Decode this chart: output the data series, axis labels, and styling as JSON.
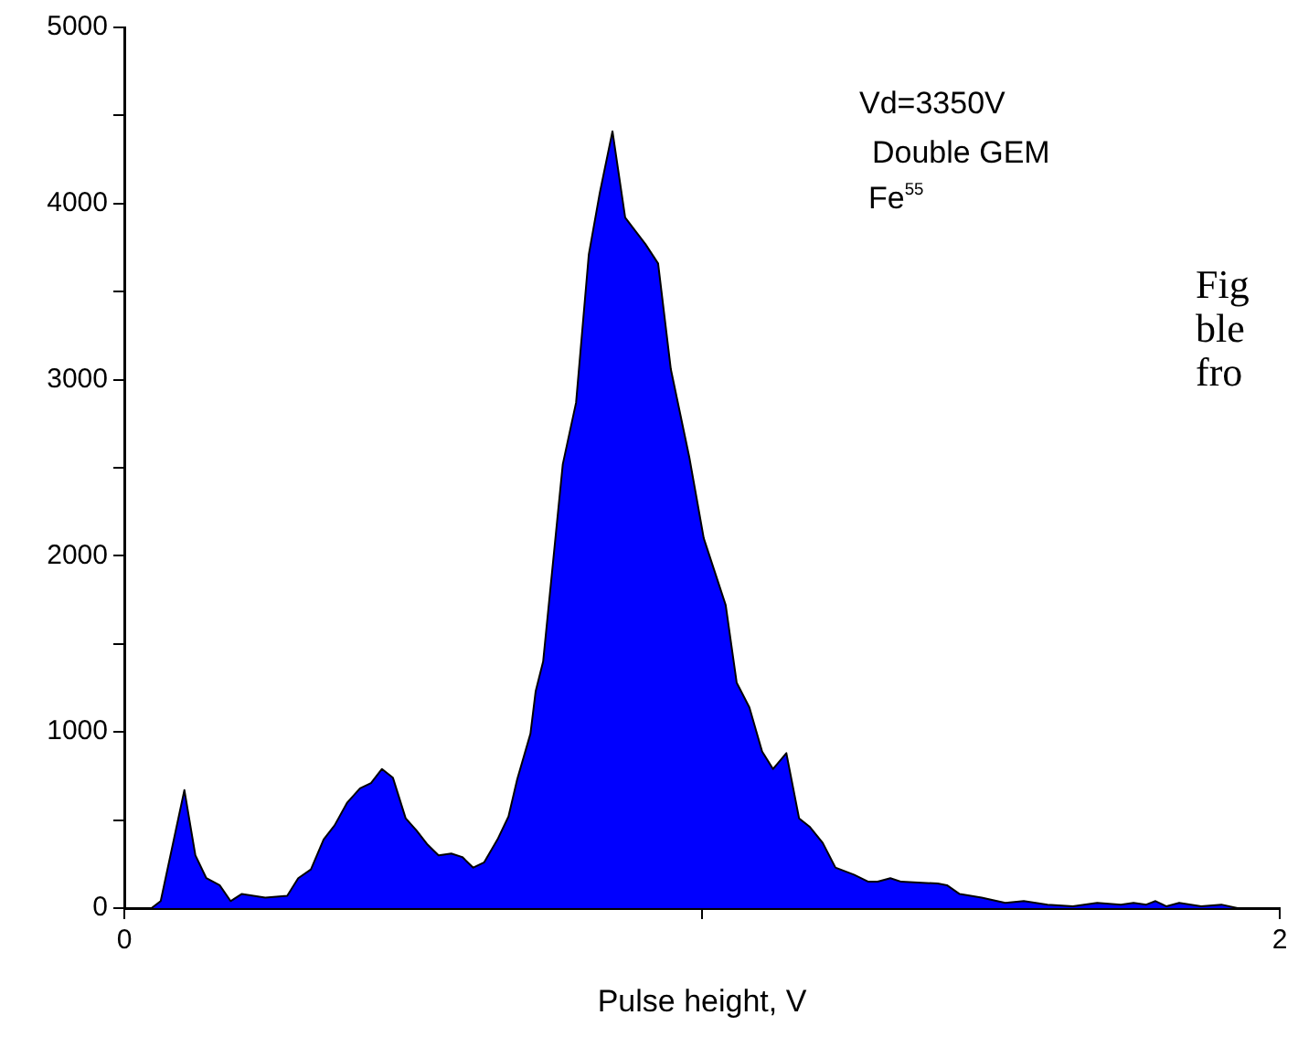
{
  "chart_data": {
    "type": "area",
    "xlabel": "Pulse height, V",
    "x": [
      0,
      0.047,
      0.063,
      0.104,
      0.123,
      0.142,
      0.165,
      0.184,
      0.203,
      0.244,
      0.282,
      0.301,
      0.323,
      0.345,
      0.364,
      0.386,
      0.408,
      0.427,
      0.446,
      0.465,
      0.487,
      0.506,
      0.525,
      0.544,
      0.566,
      0.585,
      0.604,
      0.623,
      0.646,
      0.665,
      0.68,
      0.703,
      0.712,
      0.725,
      0.759,
      0.782,
      0.804,
      0.823,
      0.845,
      0.867,
      0.902,
      0.924,
      0.946,
      0.978,
      1.003,
      1.041,
      1.06,
      1.082,
      1.104,
      1.123,
      1.146,
      1.168,
      1.187,
      1.209,
      1.231,
      1.263,
      1.288,
      1.304,
      1.326,
      1.345,
      1.408,
      1.424,
      1.446,
      1.484,
      1.525,
      1.557,
      1.598,
      1.642,
      1.684,
      1.725,
      1.747,
      1.769,
      1.785,
      1.804,
      1.826,
      1.864,
      1.899,
      1.927,
      1.99
    ],
    "values": [
      0,
      0,
      40,
      670,
      300,
      170,
      130,
      40,
      80,
      60,
      70,
      170,
      220,
      390,
      470,
      600,
      680,
      710,
      790,
      740,
      510,
      440,
      360,
      300,
      310,
      290,
      230,
      260,
      390,
      520,
      730,
      990,
      1230,
      1400,
      2520,
      2870,
      3710,
      4060,
      4410,
      3920,
      3770,
      3660,
      3060,
      2560,
      2100,
      1720,
      1280,
      1140,
      890,
      790,
      880,
      510,
      460,
      370,
      230,
      190,
      150,
      150,
      170,
      150,
      140,
      130,
      80,
      60,
      30,
      40,
      20,
      10,
      30,
      20,
      30,
      20,
      40,
      10,
      30,
      10,
      20,
      0,
      0
    ],
    "color": "#0000ff",
    "xlim": [
      0,
      2
    ],
    "xticks": [
      0,
      {
        "value": 1,
        "label": null
      },
      2
    ],
    "ylim": [
      0,
      5000
    ],
    "yticks": [
      0,
      {
        "value": 500,
        "label": null
      },
      1000,
      {
        "value": 1500,
        "label": null
      },
      2000,
      {
        "value": 2500,
        "label": null
      },
      3000,
      {
        "value": 3500,
        "label": null
      },
      4000,
      {
        "value": 4500,
        "label": null
      },
      5000
    ],
    "grid": false,
    "legend": false,
    "annotations": [
      "Vd=3350V",
      "Double GEM",
      "Fe$^{55}$",
      "Fig",
      "ble",
      "fro"
    ]
  }
}
